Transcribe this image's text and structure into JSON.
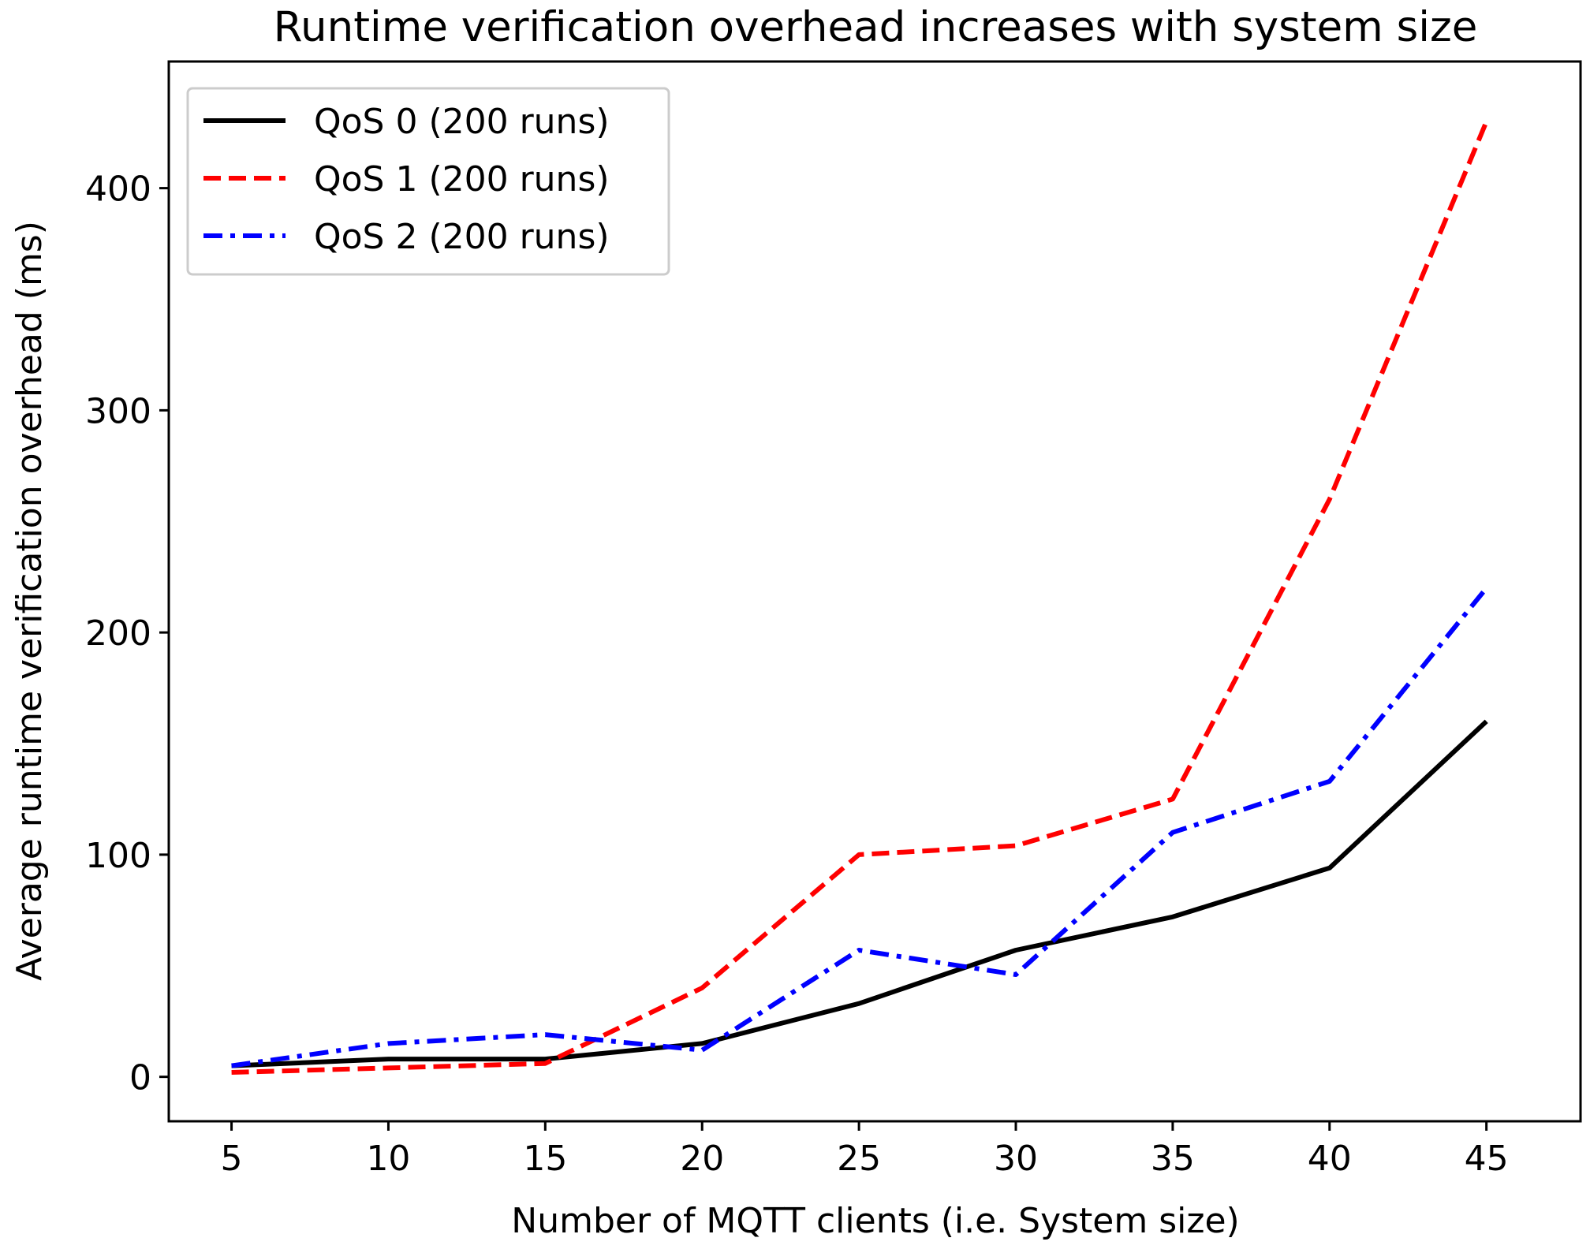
{
  "chart_data": {
    "type": "line",
    "title": "Runtime verification overhead increases with system size",
    "xlabel": "Number of MQTT clients (i.e. System size)",
    "ylabel": "Average runtime verification overhead (ms)",
    "x": [
      5,
      10,
      15,
      20,
      25,
      30,
      35,
      40,
      45
    ],
    "xlim": [
      3,
      48
    ],
    "ylim": [
      -20,
      457
    ],
    "xticks": [
      5,
      10,
      15,
      20,
      25,
      30,
      35,
      40,
      45
    ],
    "yticks": [
      0,
      100,
      200,
      300,
      400
    ],
    "grid": false,
    "legend_position": "upper-left",
    "series": [
      {
        "name": "QoS 0 (200 runs)",
        "color": "#000000",
        "style": "solid",
        "values": [
          5,
          8,
          8,
          15,
          33,
          57,
          72,
          94,
          160
        ]
      },
      {
        "name": "QoS 1 (200 runs)",
        "color": "#ff0000",
        "style": "dashed",
        "values": [
          2,
          4,
          6,
          40,
          100,
          104,
          125,
          260,
          430
        ]
      },
      {
        "name": "QoS 2 (200 runs)",
        "color": "#0000ff",
        "style": "dashdot",
        "values": [
          5,
          15,
          19,
          12,
          57,
          46,
          110,
          133,
          220
        ]
      }
    ]
  }
}
